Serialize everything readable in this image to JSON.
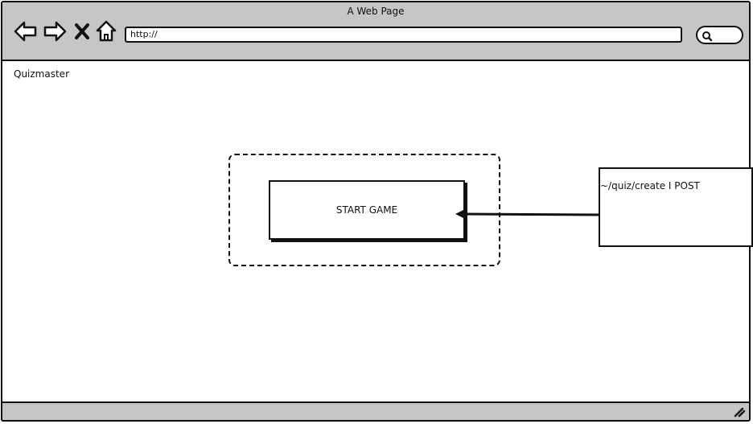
{
  "window": {
    "title": "A Web Page"
  },
  "toolbar": {
    "back_icon": "back-arrow-icon",
    "forward_icon": "forward-arrow-icon",
    "stop_icon": "close-icon",
    "home_icon": "home-icon",
    "address_value": "http://",
    "search_icon": "search-icon"
  },
  "page": {
    "app_name": "Quizmaster",
    "start_button_label": "START GAME",
    "annotation": "~/quiz/create I POST"
  }
}
